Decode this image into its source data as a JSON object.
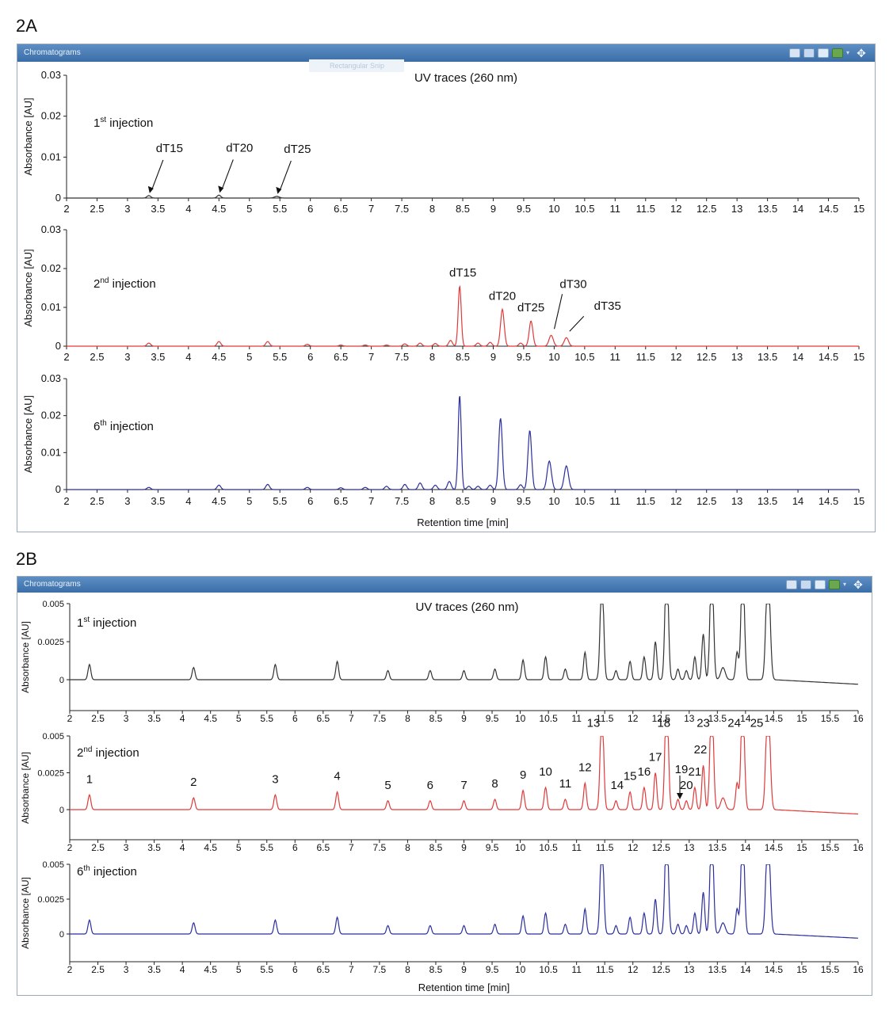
{
  "labels": {
    "fig_a": "2A",
    "fig_b": "2B"
  },
  "windows": {
    "a_title": "Chromatograms",
    "b_title": "Chromatograms"
  },
  "snip_text": "Rectangular Snip",
  "colors": {
    "first": "#333333",
    "second": "#e03a3a",
    "sixth": "#2b2f9c",
    "titlebar": "#4a7db6"
  },
  "chart_data": [
    {
      "type": "line",
      "title": "UV traces (260 nm)",
      "xlabel": "Retention time [min]",
      "ylabel": "Absorbance [AU]",
      "xlim": [
        2,
        15
      ],
      "x_ticks": [
        "2",
        "2.5",
        "3",
        "3.5",
        "4",
        "4.5",
        "5",
        "5.5",
        "6",
        "6.5",
        "7",
        "7.5",
        "8",
        "8.5",
        "9",
        "9.5",
        "10",
        "10.5",
        "11",
        "11.5",
        "12",
        "12.5",
        "13",
        "13.5",
        "14",
        "14.5",
        "15"
      ],
      "ylim": [
        0,
        0.03
      ],
      "y_ticks": [
        "0",
        "0.01",
        "0.02",
        "0.03"
      ],
      "panels": [
        {
          "label_prefix": "1",
          "label_sup": "st",
          "label_suffix": " injection",
          "color": "#333333",
          "peaks": [
            [
              3.35,
              0.0006,
              0.03
            ],
            [
              4.5,
              0.0007,
              0.03
            ],
            [
              5.45,
              0.0004,
              0.04
            ]
          ],
          "annotations": [
            {
              "text": "dT15",
              "x": 3.35,
              "y": 0.0006
            },
            {
              "text": "dT20",
              "x": 4.5,
              "y": 0.0007
            },
            {
              "text": "dT25",
              "x": 5.45,
              "y": 0.0004
            }
          ]
        },
        {
          "label_prefix": "2",
          "label_sup": "nd",
          "label_suffix": " injection",
          "color": "#e03a3a",
          "peaks": [
            [
              3.35,
              0.0008,
              0.03
            ],
            [
              4.5,
              0.0012,
              0.03
            ],
            [
              5.3,
              0.0012,
              0.03
            ],
            [
              5.95,
              0.0005,
              0.03
            ],
            [
              6.5,
              0.0003,
              0.03
            ],
            [
              6.9,
              0.0003,
              0.03
            ],
            [
              7.25,
              0.0003,
              0.03
            ],
            [
              7.55,
              0.0006,
              0.03
            ],
            [
              7.8,
              0.0008,
              0.03
            ],
            [
              8.05,
              0.0007,
              0.03
            ],
            [
              8.3,
              0.0015,
              0.03
            ],
            [
              8.45,
              0.0155,
              0.025
            ],
            [
              8.75,
              0.0008,
              0.03
            ],
            [
              8.95,
              0.001,
              0.03
            ],
            [
              9.15,
              0.0095,
              0.03
            ],
            [
              9.45,
              0.0008,
              0.03
            ],
            [
              9.62,
              0.0065,
              0.03
            ],
            [
              9.95,
              0.0028,
              0.035
            ],
            [
              10.2,
              0.0022,
              0.035
            ]
          ],
          "annotations": [
            {
              "text": "dT15",
              "x": 8.45,
              "y": 0.0155
            },
            {
              "text": "dT20",
              "x": 9.15,
              "y": 0.0095
            },
            {
              "text": "dT25",
              "x": 9.62,
              "y": 0.0065
            },
            {
              "text": "dT30",
              "x": 9.95,
              "y": 0.0028
            },
            {
              "text": "dT35",
              "x": 10.2,
              "y": 0.0022
            }
          ]
        },
        {
          "label_prefix": "6",
          "label_sup": "th",
          "label_suffix": " injection",
          "color": "#2b2f9c",
          "peaks": [
            [
              3.35,
              0.0006,
              0.03
            ],
            [
              4.5,
              0.0012,
              0.03
            ],
            [
              5.3,
              0.0014,
              0.03
            ],
            [
              5.95,
              0.0006,
              0.03
            ],
            [
              6.5,
              0.0005,
              0.03
            ],
            [
              6.9,
              0.0006,
              0.03
            ],
            [
              7.25,
              0.0009,
              0.03
            ],
            [
              7.55,
              0.0014,
              0.03
            ],
            [
              7.8,
              0.0018,
              0.03
            ],
            [
              8.05,
              0.0012,
              0.03
            ],
            [
              8.28,
              0.0022,
              0.03
            ],
            [
              8.45,
              0.0255,
              0.025
            ],
            [
              8.6,
              0.0009,
              0.03
            ],
            [
              8.75,
              0.0009,
              0.03
            ],
            [
              8.95,
              0.0012,
              0.03
            ],
            [
              9.12,
              0.0193,
              0.03
            ],
            [
              9.45,
              0.0013,
              0.03
            ],
            [
              9.6,
              0.016,
              0.03
            ],
            [
              9.92,
              0.0077,
              0.035
            ],
            [
              10.2,
              0.0064,
              0.035
            ]
          ],
          "annotations": []
        }
      ]
    },
    {
      "type": "line",
      "title": "UV traces (260 nm)",
      "xlabel": "Retention time [min]",
      "ylabel": "Absorbance [AU]",
      "xlim": [
        2,
        16
      ],
      "x_ticks": [
        "2",
        "2.5",
        "3",
        "3.5",
        "4",
        "4.5",
        "5",
        "5.5",
        "6",
        "6.5",
        "7",
        "7.5",
        "8",
        "8.5",
        "9",
        "9.5",
        "10",
        "10.5",
        "11",
        "11.5",
        "12",
        "12.5",
        "13",
        "13.5",
        "14",
        "14.5",
        "15",
        "15.5",
        "16"
      ],
      "ylim": [
        -0.003,
        0.005
      ],
      "y_ticks": [
        "0",
        "0.0025",
        "0.005"
      ],
      "panels": [
        {
          "label_prefix": "1",
          "label_sup": "st",
          "label_suffix": "  injection",
          "color": "#333333",
          "peaks": [
            [
              2.35,
              0.001,
              0.025
            ],
            [
              4.2,
              0.0008,
              0.025
            ],
            [
              5.65,
              0.001,
              0.025
            ],
            [
              6.75,
              0.0012,
              0.025
            ],
            [
              7.65,
              0.0006,
              0.025
            ],
            [
              8.4,
              0.0006,
              0.025
            ],
            [
              9.0,
              0.0006,
              0.025
            ],
            [
              9.55,
              0.0007,
              0.025
            ],
            [
              10.05,
              0.0013,
              0.025
            ],
            [
              10.45,
              0.0015,
              0.025
            ],
            [
              10.8,
              0.0007,
              0.025
            ],
            [
              11.15,
              0.0018,
              0.025
            ],
            [
              11.45,
              0.007,
              0.03
            ],
            [
              11.7,
              0.0006,
              0.025
            ],
            [
              11.95,
              0.0012,
              0.025
            ],
            [
              12.2,
              0.0015,
              0.025
            ],
            [
              12.4,
              0.0025,
              0.025
            ],
            [
              12.6,
              0.008,
              0.03
            ],
            [
              12.8,
              0.0007,
              0.025
            ],
            [
              12.95,
              0.0006,
              0.025
            ],
            [
              13.1,
              0.0015,
              0.025
            ],
            [
              13.25,
              0.003,
              0.025
            ],
            [
              13.4,
              0.008,
              0.03
            ],
            [
              13.6,
              0.0008,
              0.04
            ],
            [
              13.85,
              0.0018,
              0.025
            ],
            [
              13.95,
              0.008,
              0.03
            ],
            [
              14.4,
              0.008,
              0.035
            ]
          ],
          "annotations": []
        },
        {
          "label_prefix": "2",
          "label_sup": "nd",
          "label_suffix": " injection",
          "color": "#e03a3a",
          "peaks": [
            [
              2.35,
              0.001,
              0.025
            ],
            [
              4.2,
              0.0008,
              0.025
            ],
            [
              5.65,
              0.001,
              0.025
            ],
            [
              6.75,
              0.0012,
              0.025
            ],
            [
              7.65,
              0.0006,
              0.025
            ],
            [
              8.4,
              0.0006,
              0.025
            ],
            [
              9.0,
              0.0006,
              0.025
            ],
            [
              9.55,
              0.0007,
              0.025
            ],
            [
              10.05,
              0.0013,
              0.025
            ],
            [
              10.45,
              0.0015,
              0.025
            ],
            [
              10.8,
              0.0007,
              0.025
            ],
            [
              11.15,
              0.0018,
              0.025
            ],
            [
              11.45,
              0.007,
              0.03
            ],
            [
              11.7,
              0.0006,
              0.025
            ],
            [
              11.95,
              0.0012,
              0.025
            ],
            [
              12.2,
              0.0015,
              0.025
            ],
            [
              12.4,
              0.0025,
              0.025
            ],
            [
              12.6,
              0.008,
              0.03
            ],
            [
              12.8,
              0.0007,
              0.025
            ],
            [
              12.95,
              0.0006,
              0.025
            ],
            [
              13.1,
              0.0015,
              0.025
            ],
            [
              13.25,
              0.003,
              0.025
            ],
            [
              13.4,
              0.008,
              0.03
            ],
            [
              13.6,
              0.0008,
              0.04
            ],
            [
              13.85,
              0.0018,
              0.025
            ],
            [
              13.95,
              0.008,
              0.03
            ],
            [
              14.4,
              0.008,
              0.035
            ]
          ],
          "annotations": [
            {
              "text": "1",
              "x": 2.35,
              "y": 0.001
            },
            {
              "text": "2",
              "x": 4.2,
              "y": 0.0008
            },
            {
              "text": "3",
              "x": 5.65,
              "y": 0.001
            },
            {
              "text": "4",
              "x": 6.75,
              "y": 0.0012
            },
            {
              "text": "5",
              "x": 7.65,
              "y": 0.0006
            },
            {
              "text": "6",
              "x": 8.4,
              "y": 0.0006
            },
            {
              "text": "7",
              "x": 9.0,
              "y": 0.0006
            },
            {
              "text": "8",
              "x": 9.55,
              "y": 0.0007
            },
            {
              "text": "9",
              "x": 10.05,
              "y": 0.0013
            },
            {
              "text": "10",
              "x": 10.45,
              "y": 0.0015
            },
            {
              "text": "11",
              "x": 10.8,
              "y": 0.0007
            },
            {
              "text": "12",
              "x": 11.15,
              "y": 0.0018
            },
            {
              "text": "13",
              "x": 11.3,
              "y": 0.0048
            },
            {
              "text": "14",
              "x": 11.72,
              "y": 0.0006
            },
            {
              "text": "15",
              "x": 11.95,
              "y": 0.0012
            },
            {
              "text": "16",
              "x": 12.2,
              "y": 0.0015
            },
            {
              "text": "17",
              "x": 12.4,
              "y": 0.0025
            },
            {
              "text": "18",
              "x": 12.55,
              "y": 0.0048
            },
            {
              "text": "19",
              "x": 12.75,
              "y": 0.0007
            },
            {
              "text": "20",
              "x": 12.95,
              "y": 0.0006
            },
            {
              "text": "21",
              "x": 13.1,
              "y": 0.0015
            },
            {
              "text": "22",
              "x": 13.2,
              "y": 0.003
            },
            {
              "text": "23",
              "x": 13.25,
              "y": 0.0048
            },
            {
              "text": "24",
              "x": 13.8,
              "y": 0.0048
            },
            {
              "text": "25",
              "x": 14.2,
              "y": 0.0048
            }
          ]
        },
        {
          "label_prefix": "6",
          "label_sup": "th",
          "label_suffix": " injection",
          "color": "#2b2f9c",
          "peaks": [
            [
              2.35,
              0.001,
              0.025
            ],
            [
              4.2,
              0.0008,
              0.025
            ],
            [
              5.65,
              0.001,
              0.025
            ],
            [
              6.75,
              0.0012,
              0.025
            ],
            [
              7.65,
              0.0006,
              0.025
            ],
            [
              8.4,
              0.0006,
              0.025
            ],
            [
              9.0,
              0.0006,
              0.025
            ],
            [
              9.55,
              0.0007,
              0.025
            ],
            [
              10.05,
              0.0013,
              0.025
            ],
            [
              10.45,
              0.0015,
              0.025
            ],
            [
              10.8,
              0.0007,
              0.025
            ],
            [
              11.15,
              0.0018,
              0.025
            ],
            [
              11.45,
              0.007,
              0.03
            ],
            [
              11.7,
              0.0006,
              0.025
            ],
            [
              11.95,
              0.0012,
              0.025
            ],
            [
              12.2,
              0.0015,
              0.025
            ],
            [
              12.4,
              0.0025,
              0.025
            ],
            [
              12.6,
              0.008,
              0.03
            ],
            [
              12.8,
              0.0007,
              0.025
            ],
            [
              12.95,
              0.0006,
              0.025
            ],
            [
              13.1,
              0.0015,
              0.025
            ],
            [
              13.25,
              0.003,
              0.025
            ],
            [
              13.4,
              0.008,
              0.03
            ],
            [
              13.6,
              0.0008,
              0.04
            ],
            [
              13.85,
              0.0018,
              0.025
            ],
            [
              13.95,
              0.008,
              0.03
            ],
            [
              14.4,
              0.008,
              0.035
            ]
          ],
          "annotations": []
        }
      ]
    }
  ]
}
